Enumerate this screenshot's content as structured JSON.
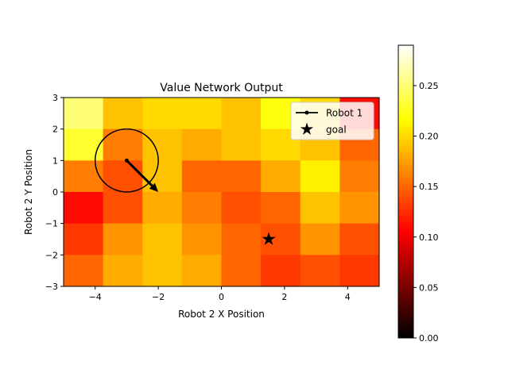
{
  "chart_data": {
    "type": "heatmap",
    "title": "Value Network Output",
    "xlabel": "Robot 2 X Position",
    "ylabel": "Robot 2 Y Position",
    "xlim": [
      -5,
      5
    ],
    "ylim": [
      -3,
      3
    ],
    "xticks": [
      "−4",
      "−2",
      "0",
      "2",
      "4"
    ],
    "xtick_values": [
      -4,
      -2,
      0,
      2,
      4
    ],
    "yticks": [
      "−3",
      "−2",
      "−1",
      "0",
      "1",
      "2",
      "3"
    ],
    "ytick_values": [
      -3,
      -2,
      -1,
      0,
      1,
      2,
      3
    ],
    "grid": false,
    "legend_placement": "top-right",
    "legend": [
      {
        "label": "Robot 1",
        "marker": "line-dot"
      },
      {
        "label": "goal",
        "marker": "star"
      }
    ],
    "colormap": "hot",
    "colorbar": {
      "range": [
        0,
        0.29
      ],
      "ticks": [
        "0.00",
        "0.05",
        "0.10",
        "0.15",
        "0.20",
        "0.25"
      ],
      "tick_values": [
        0,
        0.05,
        0.1,
        0.15,
        0.2,
        0.25
      ]
    },
    "heatmap_grid": {
      "cols": 8,
      "rows": 6,
      "x_edges": [
        -5,
        -3.75,
        -2.5,
        -1.25,
        0,
        1.25,
        2.5,
        3.75,
        5
      ],
      "y_edges": [
        3,
        2,
        1,
        0,
        -1,
        -2,
        -3
      ],
      "values": [
        [
          0.25,
          0.19,
          0.2,
          0.2,
          0.19,
          0.22,
          0.2,
          0.11
        ],
        [
          0.23,
          0.16,
          0.19,
          0.18,
          0.19,
          0.2,
          0.19,
          0.15
        ],
        [
          0.16,
          0.14,
          0.19,
          0.15,
          0.15,
          0.18,
          0.21,
          0.16
        ],
        [
          0.11,
          0.14,
          0.18,
          0.16,
          0.14,
          0.15,
          0.19,
          0.17
        ],
        [
          0.13,
          0.17,
          0.19,
          0.17,
          0.15,
          0.14,
          0.17,
          0.14
        ],
        [
          0.15,
          0.18,
          0.19,
          0.18,
          0.15,
          0.13,
          0.14,
          0.13
        ]
      ]
    },
    "robot": {
      "label": "Robot 1",
      "position": [
        -3,
        1
      ],
      "radius": 1,
      "heading_end": [
        -2,
        0
      ]
    },
    "goal": {
      "label": "goal",
      "position": [
        1.5,
        -1.5
      ]
    }
  }
}
